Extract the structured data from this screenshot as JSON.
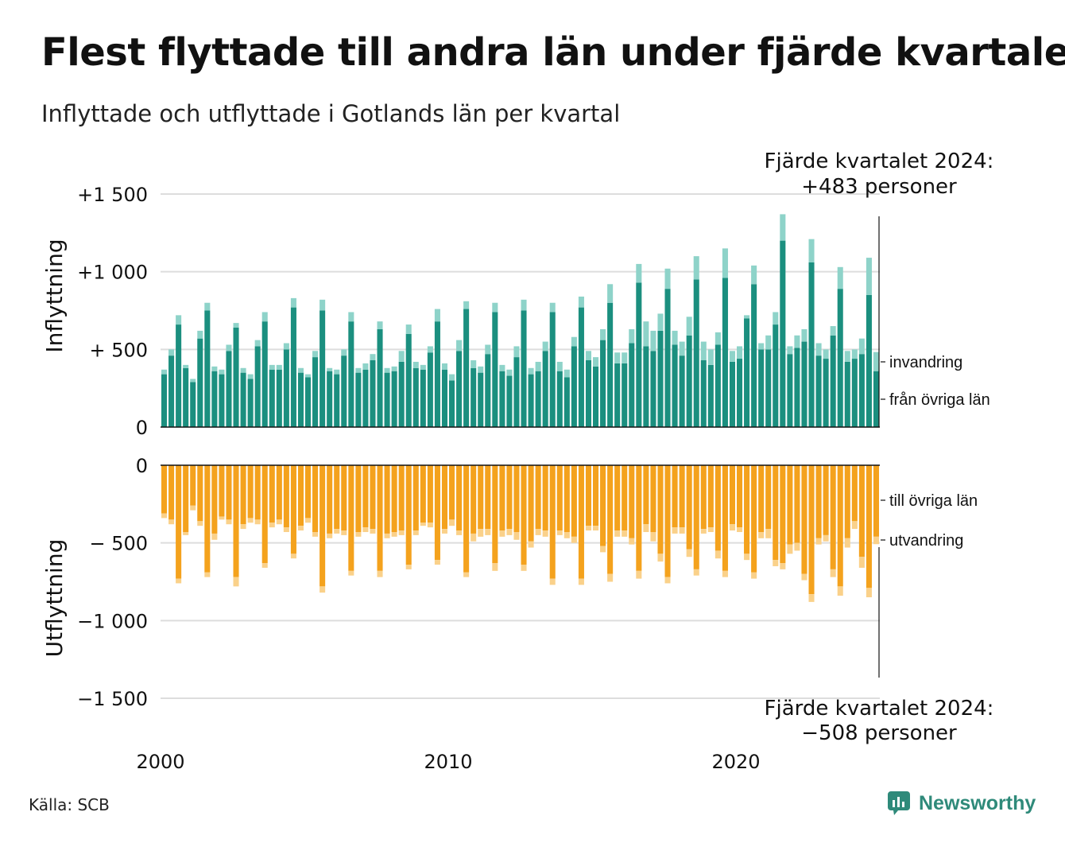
{
  "title": "Flest flyttade till andra län under fjärde kvartalet",
  "subtitle": "Inflyttade och utflyttade i Gotlands län per kvartal",
  "source": "Källa: SCB",
  "brand": "Newsworthy",
  "colors": {
    "in_main": "#1b8f7f",
    "in_secondary": "#8ed3c9",
    "out_main": "#f4a21d",
    "out_secondary": "#fad18a",
    "grid": "#dddddd",
    "axis": "#111111",
    "brand": "#2f8a7a"
  },
  "chart_data": {
    "type": "bar",
    "x_unit": "kvartal",
    "x_start": "2000 Q1",
    "x_end": "2024 Q4",
    "xticks": [
      "2000",
      "2010",
      "2020"
    ],
    "top_panel": {
      "ylabel": "Inflyttning",
      "ylim": [
        0,
        1500
      ],
      "yticks": [
        "0",
        "+  500",
        "+1 000",
        "+1 500"
      ],
      "series": [
        {
          "name": "från övriga län",
          "values": [
            340,
            460,
            660,
            380,
            290,
            570,
            750,
            360,
            340,
            490,
            640,
            350,
            310,
            520,
            680,
            370,
            370,
            500,
            770,
            350,
            320,
            450,
            750,
            360,
            340,
            460,
            680,
            350,
            370,
            430,
            630,
            350,
            360,
            420,
            600,
            380,
            370,
            480,
            680,
            370,
            300,
            490,
            760,
            380,
            350,
            470,
            740,
            360,
            330,
            450,
            750,
            340,
            360,
            490,
            740,
            360,
            320,
            520,
            770,
            430,
            390,
            560,
            800,
            410,
            410,
            540,
            930,
            520,
            490,
            620,
            890,
            530,
            460,
            590,
            950,
            430,
            400,
            530,
            960,
            420,
            440,
            700,
            920,
            500,
            500,
            660,
            1200,
            470,
            510,
            550,
            1060,
            460,
            440,
            590,
            890,
            420,
            440,
            470,
            850,
            360
          ]
        },
        {
          "name": "invandring",
          "values": [
            30,
            40,
            60,
            20,
            20,
            50,
            50,
            30,
            30,
            40,
            30,
            30,
            30,
            40,
            60,
            30,
            30,
            40,
            60,
            30,
            20,
            40,
            70,
            20,
            30,
            40,
            60,
            30,
            40,
            40,
            50,
            30,
            30,
            70,
            60,
            40,
            30,
            40,
            80,
            40,
            40,
            70,
            50,
            50,
            40,
            60,
            60,
            40,
            40,
            70,
            70,
            40,
            60,
            60,
            60,
            60,
            50,
            60,
            70,
            60,
            60,
            70,
            120,
            70,
            70,
            90,
            120,
            160,
            130,
            110,
            130,
            90,
            90,
            120,
            150,
            120,
            100,
            80,
            190,
            70,
            80,
            20,
            120,
            40,
            90,
            80,
            170,
            50,
            80,
            80,
            150,
            80,
            60,
            60,
            140,
            70,
            60,
            100,
            240,
            123
          ]
        }
      ]
    },
    "bottom_panel": {
      "ylabel": "Utflyttning",
      "ylim": [
        -1500,
        0
      ],
      "yticks": [
        "0",
        "−  500",
        "−1 000",
        "−1 500"
      ],
      "series": [
        {
          "name": "till övriga län",
          "values": [
            -310,
            -350,
            -730,
            -430,
            -260,
            -360,
            -690,
            -440,
            -330,
            -350,
            -720,
            -380,
            -340,
            -350,
            -630,
            -370,
            -350,
            -400,
            -570,
            -390,
            -340,
            -430,
            -780,
            -440,
            -410,
            -420,
            -680,
            -430,
            -400,
            -410,
            -680,
            -440,
            -430,
            -420,
            -640,
            -420,
            -370,
            -370,
            -610,
            -410,
            -350,
            -420,
            -690,
            -440,
            -410,
            -410,
            -630,
            -420,
            -410,
            -430,
            -640,
            -490,
            -410,
            -420,
            -730,
            -420,
            -430,
            -460,
            -730,
            -390,
            -390,
            -520,
            -700,
            -420,
            -420,
            -470,
            -680,
            -380,
            -430,
            -570,
            -720,
            -400,
            -400,
            -540,
            -670,
            -410,
            -400,
            -550,
            -680,
            -380,
            -400,
            -570,
            -690,
            -430,
            -410,
            -610,
            -630,
            -510,
            -500,
            -700,
            -830,
            -470,
            -450,
            -670,
            -780,
            -470,
            -360,
            -590,
            -790,
            -460
          ]
        },
        {
          "name": "utvandring",
          "values": [
            -30,
            -30,
            -30,
            -20,
            -30,
            -30,
            -30,
            -40,
            -20,
            -30,
            -60,
            -30,
            -30,
            -30,
            -30,
            -30,
            -30,
            -30,
            -30,
            -30,
            -30,
            -30,
            -40,
            -30,
            -30,
            -30,
            -30,
            -30,
            -30,
            -30,
            -40,
            -30,
            -30,
            -30,
            -30,
            -30,
            -20,
            -30,
            -30,
            -30,
            -40,
            -30,
            -30,
            -50,
            -50,
            -40,
            -50,
            -40,
            -40,
            -50,
            -40,
            -40,
            -40,
            -40,
            -40,
            -30,
            -40,
            -40,
            -40,
            -30,
            -30,
            -40,
            -50,
            -40,
            -40,
            -40,
            -50,
            -50,
            -60,
            -50,
            -40,
            -40,
            -40,
            -50,
            -40,
            -30,
            -30,
            -50,
            -40,
            -40,
            -30,
            -40,
            -40,
            -40,
            -60,
            -40,
            -40,
            -60,
            -50,
            -40,
            -50,
            -40,
            -40,
            -50,
            -60,
            -60,
            -50,
            -70,
            -60,
            -48
          ]
        }
      ]
    },
    "annotations": [
      {
        "line1": "Fjärde kvartalet 2024:",
        "line2": "+483 personer"
      },
      {
        "line1": "Fjärde kvartalet 2024:",
        "line2": "−508 personer"
      }
    ]
  }
}
